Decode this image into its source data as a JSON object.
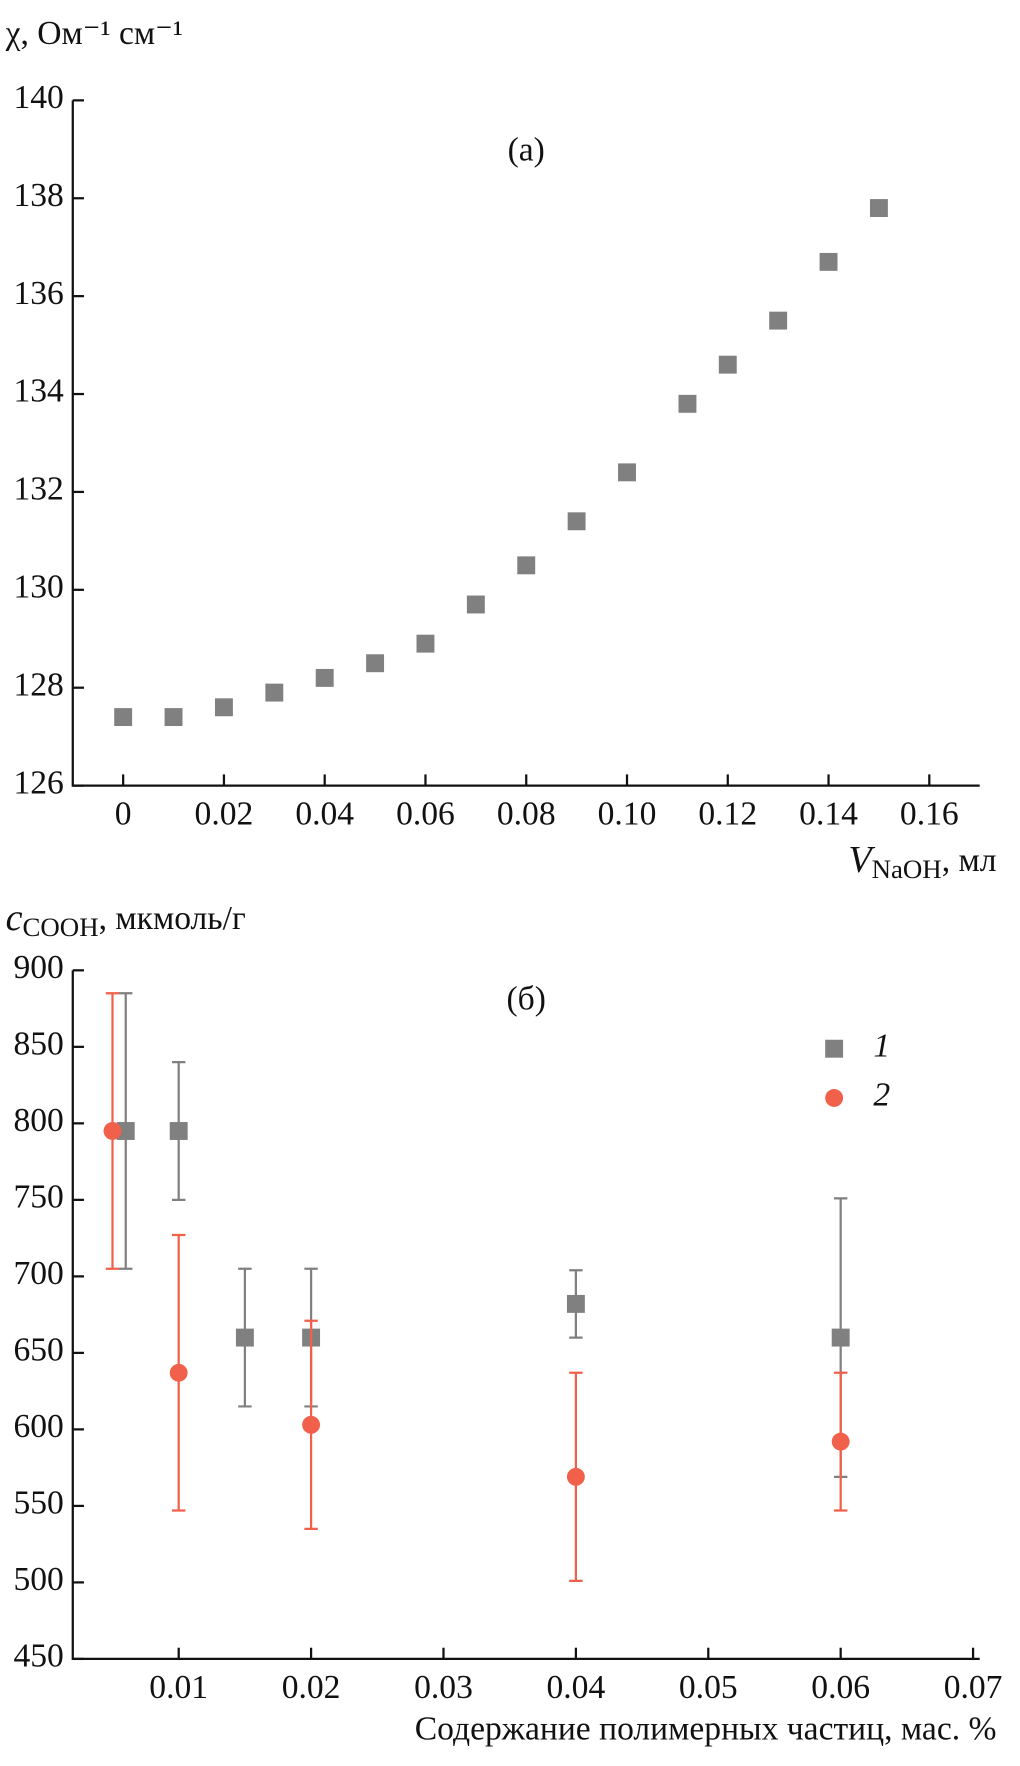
{
  "chart_data": [
    {
      "type": "scatter",
      "panel_label": "(а)",
      "ylabel": "χ, Ом⁻¹ см⁻¹",
      "xlabel": {
        "symbol": "V",
        "subscript": "NaOH",
        "unit": ", мл"
      },
      "xlim": [
        -0.01,
        0.17
      ],
      "ylim": [
        126,
        140
      ],
      "xticks": [
        0,
        0.02,
        0.04,
        0.06,
        0.08,
        {
          "value": 0.1,
          "label": "0.10"
        },
        0.12,
        0.14,
        0.16
      ],
      "yticks": [
        126,
        128,
        130,
        132,
        134,
        136,
        138,
        140
      ],
      "series": [
        {
          "marker": "square",
          "color": "#808080",
          "x": [
            0,
            0.01,
            0.02,
            0.03,
            0.04,
            0.05,
            0.06,
            0.07,
            0.08,
            0.09,
            0.1,
            0.112,
            0.12,
            0.13,
            0.14,
            0.15
          ],
          "values": [
            127.4,
            127.4,
            127.6,
            127.9,
            128.2,
            128.5,
            128.9,
            129.7,
            130.5,
            131.4,
            132.4,
            133.8,
            134.6,
            135.5,
            136.7,
            137.8
          ]
        }
      ]
    },
    {
      "type": "scatter",
      "panel_label": "(б)",
      "ylabel": {
        "symbol": "c",
        "subscript": "COOH",
        "unit": ", мкмоль/г"
      },
      "xlabel": "Содержание полимерных частиц, мас. %",
      "xlim": [
        0.002,
        0.0705
      ],
      "ylim": [
        450,
        900
      ],
      "xticks": [
        0.01,
        0.02,
        0.03,
        0.04,
        0.05,
        0.06,
        0.07
      ],
      "yticks": [
        450,
        500,
        550,
        600,
        650,
        700,
        750,
        800,
        850,
        900
      ],
      "legend": "upper right",
      "series": [
        {
          "name": "1",
          "marker": "square",
          "color": "#808080",
          "x": [
            0.006,
            0.01,
            0.015,
            0.02,
            0.04,
            0.06
          ],
          "values": [
            795,
            795,
            660,
            660,
            682,
            660
          ],
          "errors": [
            90,
            45,
            45,
            45,
            22,
            91
          ]
        },
        {
          "name": "2",
          "marker": "circle",
          "color": "#f0604a",
          "x": [
            0.005,
            0.01,
            0.02,
            0.04,
            0.06
          ],
          "values": [
            795,
            637,
            603,
            569,
            592
          ],
          "errors": [
            90,
            90,
            68,
            68,
            45
          ]
        }
      ]
    }
  ]
}
